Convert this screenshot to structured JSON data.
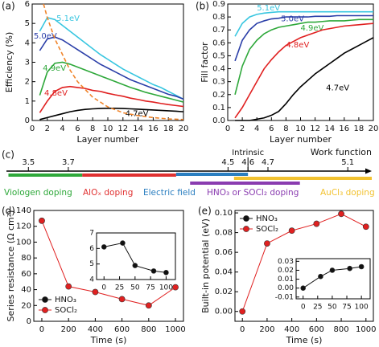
{
  "chart_data": [
    {
      "type": "line",
      "panel_label": "(a)",
      "x_label": "Layer number",
      "y_label": "Efficiency (%)",
      "xlim": [
        0,
        20
      ],
      "ylim": [
        0,
        6
      ],
      "xticks": [
        0,
        2,
        4,
        6,
        8,
        10,
        12,
        14,
        16,
        18,
        20
      ],
      "yticks": [
        0,
        1,
        2,
        3,
        4,
        5,
        6
      ],
      "x": [
        1,
        2,
        3,
        4,
        5,
        6,
        7,
        8,
        9,
        10,
        11,
        12,
        13,
        14,
        15,
        16,
        17,
        18,
        19,
        20
      ],
      "series": [
        {
          "name": "5.1eV",
          "color": "#38c6e0",
          "values": [
            4.6,
            5.3,
            5.2,
            4.9,
            4.6,
            4.3,
            4.0,
            3.7,
            3.4,
            3.15,
            2.9,
            2.65,
            2.45,
            2.25,
            2.05,
            1.85,
            1.7,
            1.5,
            1.3,
            1.1
          ]
        },
        {
          "name": "5.0eV",
          "color": "#2a3ea8",
          "values": [
            3.6,
            4.2,
            4.3,
            4.15,
            3.9,
            3.65,
            3.4,
            3.15,
            2.9,
            2.7,
            2.5,
            2.3,
            2.1,
            1.95,
            1.8,
            1.65,
            1.5,
            1.35,
            1.25,
            1.1
          ]
        },
        {
          "name": "4.9eV",
          "color": "#2ea83a",
          "values": [
            1.3,
            2.5,
            2.95,
            3.0,
            2.9,
            2.75,
            2.6,
            2.45,
            2.3,
            2.15,
            2.0,
            1.85,
            1.7,
            1.58,
            1.45,
            1.35,
            1.25,
            1.15,
            1.05,
            0.95
          ]
        },
        {
          "name": "4.8eV",
          "color": "#e02020",
          "values": [
            0.4,
            1.0,
            1.5,
            1.7,
            1.75,
            1.7,
            1.65,
            1.55,
            1.5,
            1.4,
            1.32,
            1.25,
            1.15,
            1.08,
            1.0,
            0.95,
            0.88,
            0.82,
            0.77,
            0.72
          ]
        },
        {
          "name": "4.7eV",
          "color": "#000000",
          "values": [
            0.05,
            0.15,
            0.25,
            0.35,
            0.45,
            0.52,
            0.57,
            0.6,
            0.62,
            0.63,
            0.63,
            0.62,
            0.6,
            0.58,
            0.56,
            0.54,
            0.52,
            0.5,
            0.48,
            0.45
          ]
        },
        {
          "color": "#f0842a",
          "dashed": true,
          "x": [
            1.5,
            2,
            3,
            4,
            5,
            6,
            8,
            10,
            12,
            14,
            16,
            18,
            20
          ],
          "values": [
            6,
            5.3,
            4.2,
            3.4,
            2.6,
            2.0,
            1.2,
            0.7,
            0.4,
            0.25,
            0.15,
            0.08,
            0.05
          ]
        }
      ]
    },
    {
      "type": "line",
      "panel_label": "(b)",
      "x_label": "Layer number",
      "y_label": "Fill factor",
      "xlim": [
        0,
        20
      ],
      "ylim": [
        0,
        0.9
      ],
      "xticks": [
        0,
        2,
        4,
        6,
        8,
        10,
        12,
        14,
        16,
        18,
        20
      ],
      "yticks": [
        {
          "value": 0,
          "label": "0.0"
        },
        0.1,
        0.2,
        0.3,
        0.4,
        0.5,
        0.6,
        0.7,
        0.8,
        0.9
      ],
      "x": [
        1,
        2,
        3,
        4,
        5,
        6,
        7,
        8,
        9,
        10,
        11,
        12,
        13,
        14,
        15,
        16,
        17,
        18,
        19,
        20
      ],
      "series": [
        {
          "name": "5.1eV",
          "color": "#38c6e0",
          "values": [
            0.65,
            0.75,
            0.8,
            0.82,
            0.83,
            0.835,
            0.84,
            0.84,
            0.84,
            0.84,
            0.84,
            0.84,
            0.84,
            0.84,
            0.84,
            0.84,
            0.84,
            0.84,
            0.84,
            0.84
          ]
        },
        {
          "name": "5.0eV",
          "color": "#2a3ea8",
          "values": [
            0.46,
            0.62,
            0.7,
            0.75,
            0.77,
            0.785,
            0.79,
            0.8,
            0.8,
            0.8,
            0.8,
            0.805,
            0.805,
            0.805,
            0.81,
            0.81,
            0.81,
            0.81,
            0.81,
            0.81
          ]
        },
        {
          "name": "4.9eV",
          "color": "#2ea83a",
          "values": [
            0.2,
            0.42,
            0.55,
            0.62,
            0.67,
            0.7,
            0.72,
            0.73,
            0.74,
            0.75,
            0.76,
            0.76,
            0.765,
            0.77,
            0.77,
            0.77,
            0.775,
            0.78,
            0.78,
            0.78
          ]
        },
        {
          "name": "4.8eV",
          "color": "#e02020",
          "values": [
            0.02,
            0.1,
            0.2,
            0.3,
            0.4,
            0.47,
            0.53,
            0.58,
            0.61,
            0.64,
            0.66,
            0.68,
            0.7,
            0.71,
            0.72,
            0.73,
            0.735,
            0.74,
            0.745,
            0.75
          ]
        },
        {
          "name": "4.7eV",
          "color": "#000000",
          "values": [
            0,
            0,
            0,
            0.01,
            0.02,
            0.04,
            0.07,
            0.13,
            0.2,
            0.26,
            0.31,
            0.36,
            0.4,
            0.44,
            0.48,
            0.52,
            0.55,
            0.58,
            0.61,
            0.64
          ]
        }
      ]
    },
    {
      "type": "number_line",
      "panel_label": "(c)",
      "x_label": "Work function",
      "xlim": [
        3.39,
        5.22
      ],
      "xticks": [
        3.5,
        3.7,
        4.5,
        4.6,
        4.7,
        5.1
      ],
      "annotation": {
        "text": "Intrinsic",
        "x": 4.6
      },
      "bars": [
        {
          "name": "Viologen doping",
          "color": "#2ea83a",
          "range": [
            3.4,
            3.77
          ]
        },
        {
          "name": "AlOₓ doping",
          "color": "#e03030",
          "range": [
            3.77,
            4.24
          ]
        },
        {
          "name": "Electric field",
          "color": "#2a7ec0",
          "range": [
            4.24,
            4.6
          ]
        },
        {
          "name": "HNO₃ or SOCl₂ doping",
          "color": "#8a3cb0",
          "range": [
            4.31,
            4.86
          ]
        },
        {
          "name": "AuCl₃ doping",
          "color": "#f2c230",
          "range": [
            4.53,
            5.22
          ]
        }
      ]
    },
    {
      "type": "line",
      "markers": true,
      "panel_label": "(d)",
      "x_label": "Time (s)",
      "y_label": "Series resistance (Ω cm²)",
      "xlim": [
        -60,
        1060
      ],
      "ylim": [
        0,
        140
      ],
      "xticks": [
        0,
        200,
        400,
        600,
        800,
        1000
      ],
      "yticks": [
        0,
        20,
        40,
        60,
        80,
        100,
        120,
        140
      ],
      "legend": "lower left",
      "x": [
        0,
        200,
        400,
        600,
        800,
        1000
      ],
      "series": [
        {
          "name": "SOCl₂",
          "color": "#e02020",
          "values": [
            127,
            44,
            37,
            28,
            20,
            43
          ]
        }
      ]
    },
    {
      "type": "line",
      "markers": true,
      "inset": true,
      "xlim": [
        -12,
        115
      ],
      "ylim": [
        4,
        7
      ],
      "xticks": [
        0,
        25,
        50,
        75,
        100
      ],
      "yticks": [
        4,
        5,
        6,
        7
      ],
      "x": [
        0,
        30,
        50,
        80,
        100
      ],
      "series": [
        {
          "name": "HNO₃",
          "color": "#111111",
          "values": [
            6.1,
            6.35,
            4.9,
            4.55,
            4.45
          ]
        }
      ]
    },
    {
      "type": "line",
      "markers": true,
      "panel_label": "(e)",
      "x_label": "Time (s)",
      "y_label": "Built-in potential (eV)",
      "xlim": [
        -60,
        1060
      ],
      "ylim": [
        -0.01,
        0.1025
      ],
      "xticks": [
        0,
        200,
        400,
        600,
        800,
        1000
      ],
      "yticks": [
        {
          "value": 0,
          "label": "0.00"
        },
        {
          "value": 0.02,
          "label": "0.02"
        },
        {
          "value": 0.04,
          "label": "0.04"
        },
        {
          "value": 0.06,
          "label": "0.06"
        },
        {
          "value": 0.08,
          "label": "0.08"
        },
        {
          "value": 0.1,
          "label": "0.10"
        }
      ],
      "legend": "upper left",
      "x": [
        0,
        200,
        400,
        600,
        800,
        1000
      ],
      "series": [
        {
          "name": "SOCl₂",
          "color": "#e02020",
          "values": [
            0,
            0.069,
            0.082,
            0.089,
            0.099,
            0.086
          ]
        }
      ]
    },
    {
      "type": "line",
      "markers": true,
      "inset": true,
      "xlim": [
        -12,
        115
      ],
      "ylim": [
        -0.012,
        0.033
      ],
      "xticks": [
        0,
        25,
        50,
        75,
        100
      ],
      "yticks": [
        -0.01,
        {
          "value": 0,
          "label": "0.00"
        },
        0.01,
        0.02,
        0.03
      ],
      "x": [
        0,
        30,
        50,
        80,
        100
      ],
      "series": [
        {
          "name": "HNO₃",
          "color": "#111111",
          "values": [
            0,
            0.013,
            0.02,
            0.022,
            0.024
          ]
        }
      ]
    }
  ]
}
